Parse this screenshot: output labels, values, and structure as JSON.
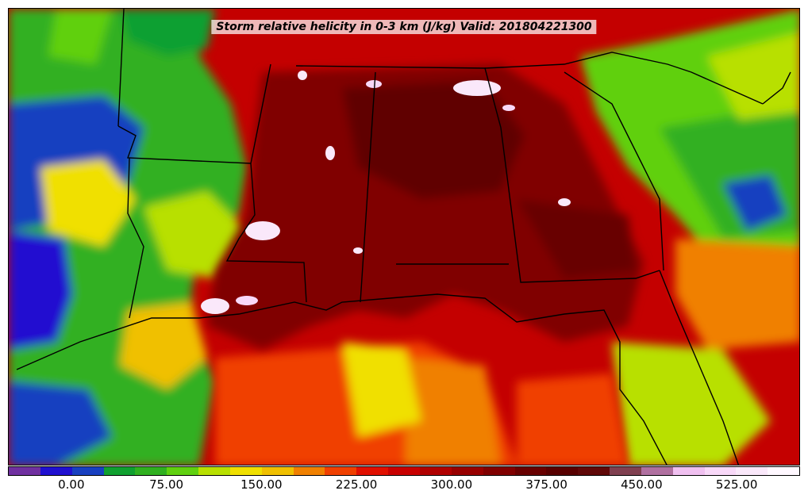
{
  "title": "Storm relative helicity in 0-3 km (J/kg) Valid: 201804221300",
  "colorbar": {
    "colors": [
      "#7030a0",
      "#2010d0",
      "#1840c0",
      "#10a030",
      "#30b020",
      "#60d010",
      "#b8e000",
      "#f0e000",
      "#f0c000",
      "#f08000",
      "#f04000",
      "#e01000",
      "#c80000",
      "#b00000",
      "#980000",
      "#800000",
      "#680000",
      "#580000",
      "#600808",
      "#804050",
      "#b070a0",
      "#f0c0f0",
      "#f8d8f8",
      "#fae8fa",
      "#fff8ff"
    ],
    "min": -50,
    "max": 575,
    "ticks": [
      "0.00",
      "75.00",
      "150.00",
      "225.00",
      "300.00",
      "375.00",
      "450.00",
      "525.00"
    ],
    "tick_values": [
      0,
      75,
      150,
      225,
      300,
      375,
      450,
      525
    ]
  }
}
